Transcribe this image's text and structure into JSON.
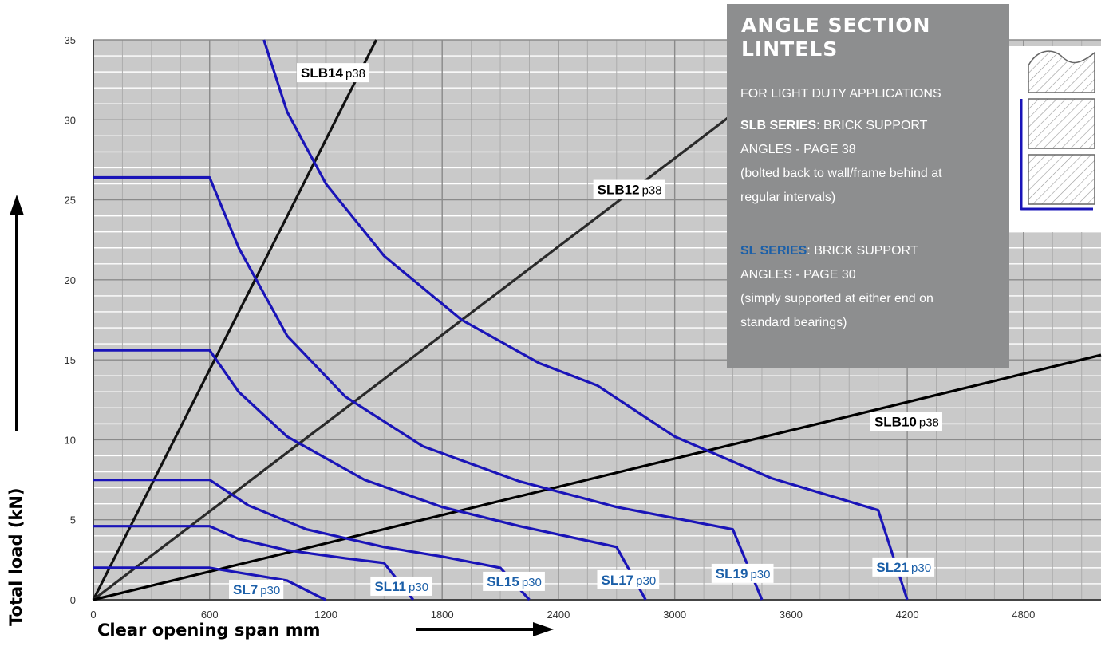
{
  "chart_data": {
    "type": "line",
    "title": "",
    "xlabel": "Clear opening span mm",
    "ylabel": "Total load (kN)",
    "xlim": [
      0,
      5200
    ],
    "ylim": [
      0,
      35
    ],
    "x_ticks": [
      "0",
      "600",
      "1200",
      "1800",
      "2400",
      "3000",
      "3600",
      "4200",
      "4800"
    ],
    "x_tick_values": [
      0,
      600,
      1200,
      1800,
      2400,
      3000,
      3600,
      4200,
      4800
    ],
    "y_ticks": [
      "0",
      "5",
      "10",
      "15",
      "20",
      "25",
      "30",
      "35"
    ],
    "y_tick_values": [
      0,
      5,
      10,
      15,
      20,
      25,
      30,
      35
    ],
    "grid": true,
    "series": [
      {
        "name": "SLB14",
        "page": "p38",
        "color": "#111111",
        "style": "slb",
        "x": [
          0,
          1460
        ],
        "y": [
          0,
          35
        ],
        "label_at": [
          1050,
          32.9
        ]
      },
      {
        "name": "SLB12",
        "page": "p38",
        "color": "#2a2a2a",
        "style": "slb",
        "x": [
          0,
          3500
        ],
        "y": [
          0,
          32.2
        ],
        "label_at": [
          2580,
          25.6
        ]
      },
      {
        "name": "SLB10",
        "page": "p38",
        "color": "#000000",
        "style": "slb",
        "x": [
          0,
          5200
        ],
        "y": [
          0,
          15.3
        ],
        "label_at": [
          4010,
          11.1
        ]
      },
      {
        "name": "SL7",
        "page": "p30",
        "color": "#1a14b8",
        "style": "sl",
        "x": [
          0,
          600,
          800,
          1000,
          1180,
          1200
        ],
        "y": [
          2.0,
          2.0,
          1.6,
          1.2,
          0.1,
          0
        ],
        "label_at": [
          700,
          0.6
        ]
      },
      {
        "name": "SL11",
        "page": "p30",
        "color": "#1a14b8",
        "style": "sl",
        "x": [
          0,
          600,
          750,
          1000,
          1300,
          1500,
          1650
        ],
        "y": [
          4.6,
          4.6,
          3.8,
          3.1,
          2.6,
          2.3,
          0
        ],
        "label_at": [
          1430,
          0.8
        ]
      },
      {
        "name": "SL15",
        "page": "p30",
        "color": "#1a14b8",
        "style": "sl",
        "x": [
          0,
          600,
          800,
          1100,
          1500,
          1800,
          2100,
          2250
        ],
        "y": [
          7.5,
          7.5,
          5.9,
          4.4,
          3.3,
          2.7,
          2.0,
          0
        ],
        "label_at": [
          2010,
          1.1
        ]
      },
      {
        "name": "SL17",
        "page": "p30",
        "color": "#1a14b8",
        "style": "sl",
        "x": [
          0,
          600,
          750,
          1000,
          1400,
          1800,
          2200,
          2700,
          2850
        ],
        "y": [
          15.6,
          15.6,
          13.0,
          10.2,
          7.5,
          5.8,
          4.6,
          3.3,
          0
        ],
        "label_at": [
          2600,
          1.2
        ]
      },
      {
        "name": "SL19",
        "page": "p30",
        "color": "#1a14b8",
        "style": "sl",
        "x": [
          0,
          600,
          750,
          1000,
          1300,
          1700,
          2200,
          2700,
          3300,
          3450
        ],
        "y": [
          26.4,
          26.4,
          22.0,
          16.5,
          12.7,
          9.6,
          7.4,
          5.8,
          4.4,
          0
        ],
        "label_at": [
          3190,
          1.6
        ]
      },
      {
        "name": "SL21",
        "page": "p30",
        "color": "#1a14b8",
        "style": "sl",
        "x": [
          880,
          1000,
          1200,
          1500,
          1900,
          2300,
          2600,
          3000,
          3500,
          4050,
          4200
        ],
        "y": [
          35,
          30.5,
          26.0,
          21.5,
          17.5,
          14.8,
          13.4,
          10.2,
          7.6,
          5.6,
          0
        ],
        "label_at": [
          4020,
          2.0
        ]
      }
    ]
  },
  "info_box": {
    "title": "ANGLE SECTION LINTELS",
    "subtitle": "FOR LIGHT DUTY APPLICATIONS",
    "slb_series_name": "SLB SERIES",
    "slb_series_desc": ": BRICK SUPPORT",
    "slb_series_desc2": "ANGLES - PAGE 38",
    "slb_note1": "(bolted back to wall/frame behind at",
    "slb_note2": "regular intervals)",
    "sl_series_name": "SL SERIES",
    "sl_series_desc": ": BRICK SUPPORT",
    "sl_series_desc2": "ANGLES - PAGE 30",
    "sl_note1": "(simply supported at either end on",
    "sl_note2": "standard bearings)"
  }
}
